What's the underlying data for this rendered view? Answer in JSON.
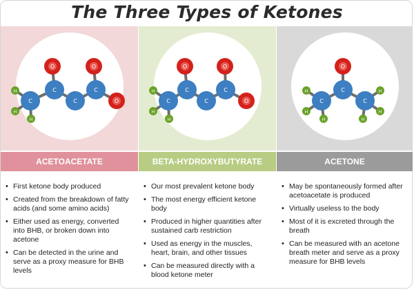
{
  "title": "The Three Types of Ketones",
  "colors": {
    "acetoacetate_panel": "#f2d8d8",
    "acetoacetate_banner": "#e0919b",
    "bhb_panel": "#e3ecd0",
    "bhb_banner": "#b8cc83",
    "acetone_panel": "#d9d9d9",
    "acetone_banner": "#9b9b9b",
    "carbon": "#3d7fc1",
    "oxygen": "#d4211c",
    "hydrogen": "#6aa22a"
  },
  "atom_labels": {
    "carbon": "C",
    "oxygen": "O",
    "hydrogen": "H"
  },
  "columns": [
    {
      "name": "ACETOACETATE",
      "bullets": [
        "First ketone body produced",
        "Created from the breakdown of fatty acids (and some amino acids)",
        "Either used as energy, converted into BHB, or broken down into acetone",
        "Can be detected in the urine and serve as a proxy measure for BHB levels"
      ]
    },
    {
      "name": "BETA-HYDROXYBUTYRATE",
      "bullets": [
        "Our most prevalent ketone body",
        "The most energy efficient ketone body",
        "Produced in higher quantities after sustained carb restriction",
        "Used as energy in the muscles, heart, brain, and other tissues",
        "Can be measured directly with a blood ketone meter"
      ]
    },
    {
      "name": "ACETONE",
      "bullets": [
        "May be spontaneously formed after acetoacetate is produced",
        "Virtually useless to the body",
        "Most of it is excreted through the breath",
        "Can be measured with an acetone breath meter and serve as a proxy measure for BHB levels"
      ]
    }
  ]
}
